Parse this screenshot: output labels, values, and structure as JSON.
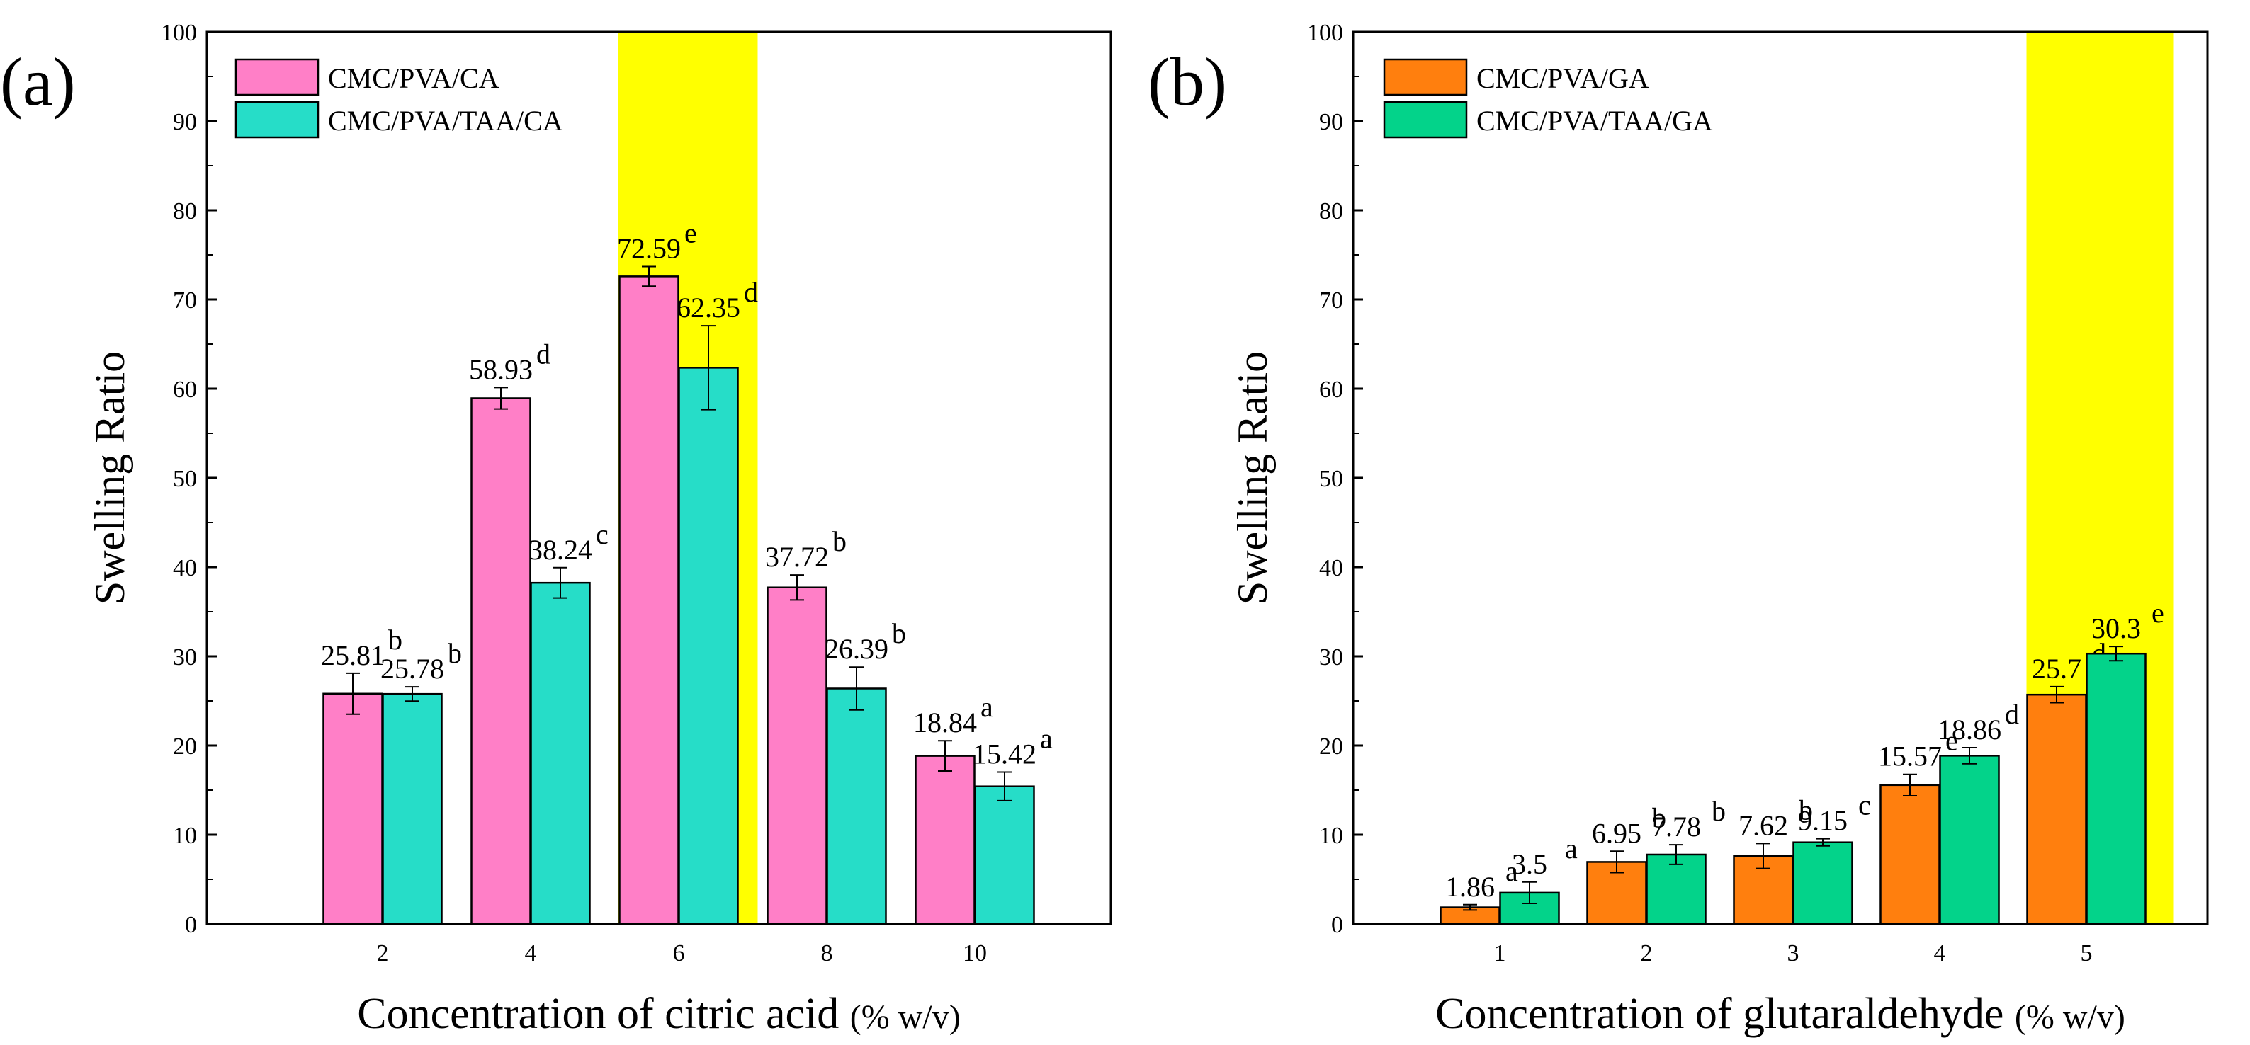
{
  "chart_data": [
    {
      "type": "bar",
      "panel_label": "(a)",
      "title": "",
      "xlabel": "Concentration of citric acid",
      "xlabel_unit": "(% w/v)",
      "ylabel": "Swelling Ratio",
      "ylim": [
        0,
        100
      ],
      "yticks": [
        "0",
        "10",
        "20",
        "30",
        "40",
        "50",
        "60",
        "70",
        "80",
        "90",
        "100"
      ],
      "grid": false,
      "legend_position": "top-left",
      "categories": [
        "2",
        "4",
        "6",
        "8",
        "10"
      ],
      "highlight_category": "6",
      "highlight_color": "#ffff00",
      "series": [
        {
          "name": "CMC/PVA/CA",
          "color": "#ff7fc7",
          "values": [
            25.81,
            58.93,
            72.59,
            37.72,
            18.84
          ],
          "errors": [
            2.3,
            1.2,
            1.1,
            1.4,
            1.7
          ],
          "labels": [
            "25.81",
            "58.93",
            "72.59",
            "37.72",
            "18.84"
          ],
          "letters": [
            "b",
            "d",
            "e",
            "b",
            "a"
          ]
        },
        {
          "name": "CMC/PVA/TAA/CA",
          "color": "#26ddc8",
          "values": [
            25.78,
            38.24,
            62.35,
            26.39,
            15.42
          ],
          "errors": [
            0.8,
            1.7,
            4.7,
            2.4,
            1.6
          ],
          "labels": [
            "25.78",
            "38.24",
            "62.35",
            "26.39",
            "15.42"
          ],
          "letters": [
            "b",
            "c",
            "d",
            "b",
            "a"
          ]
        }
      ]
    },
    {
      "type": "bar",
      "panel_label": "(b)",
      "title": "",
      "xlabel": "Concentration of glutaraldehyde",
      "xlabel_unit": "(% w/v)",
      "ylabel": "Swelling Ratio",
      "ylim": [
        0,
        100
      ],
      "yticks": [
        "0",
        "10",
        "20",
        "30",
        "40",
        "50",
        "60",
        "70",
        "80",
        "90",
        "100"
      ],
      "grid": false,
      "legend_position": "top-left",
      "categories": [
        "1",
        "2",
        "3",
        "4",
        "5"
      ],
      "highlight_category": "5",
      "highlight_color": "#ffff00",
      "series": [
        {
          "name": "CMC/PVA/GA",
          "color": "#ff7f0e",
          "values": [
            1.86,
            6.95,
            7.62,
            15.57,
            25.7
          ],
          "errors": [
            0.3,
            1.2,
            1.4,
            1.2,
            0.9
          ],
          "labels": [
            "1.86",
            "6.95",
            "7.62",
            "15.57",
            "25.7"
          ],
          "letters": [
            "a",
            "b",
            "b",
            "e",
            "d"
          ]
        },
        {
          "name": "CMC/PVA/TAA/GA",
          "color": "#03d38a",
          "values": [
            3.5,
            7.78,
            9.15,
            18.86,
            30.3
          ],
          "errors": [
            1.2,
            1.1,
            0.4,
            0.9,
            0.8
          ],
          "labels": [
            "3.5",
            "7.78",
            "9.15",
            "18.86",
            "30.3"
          ],
          "letters": [
            "a",
            "b",
            "c",
            "d",
            "e"
          ]
        }
      ]
    }
  ]
}
